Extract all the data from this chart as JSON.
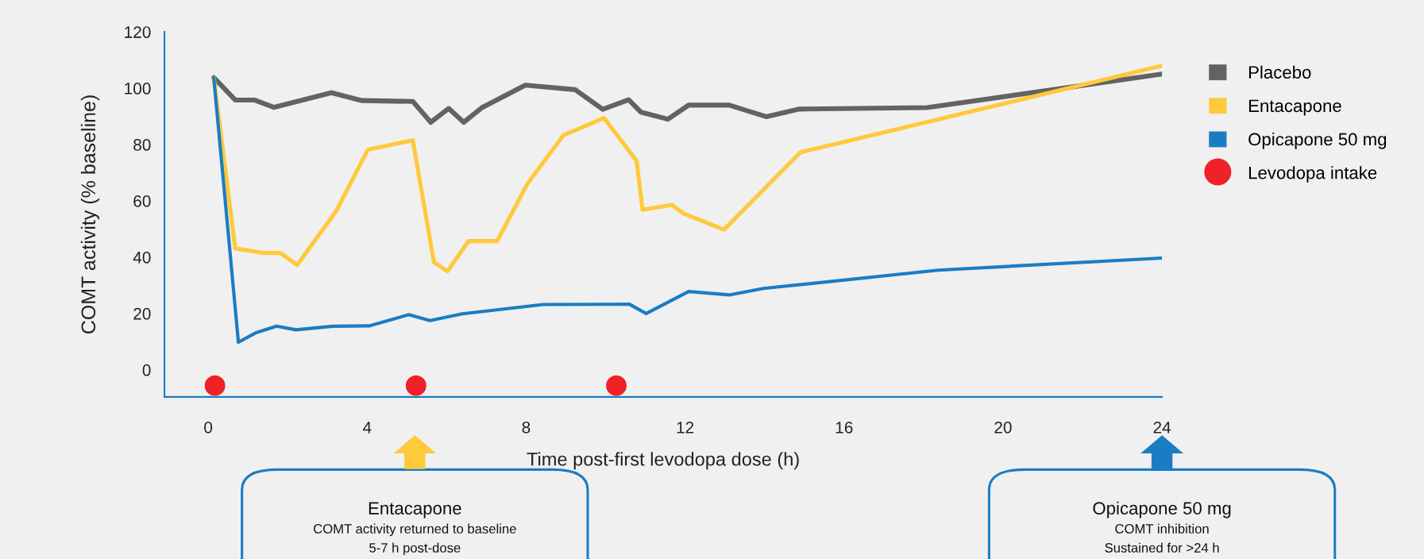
{
  "chart_data": {
    "type": "line",
    "xlabel": "Time post-first levodopa dose (h)",
    "ylabel": "COMT activity (% baseline)",
    "xlim": [
      -1.1,
      24
    ],
    "xticks": [
      0,
      4,
      8,
      12,
      16,
      20,
      24
    ],
    "ylim": [
      -9.6,
      120
    ],
    "yticks": [
      0,
      20,
      40,
      60,
      80,
      100,
      120
    ],
    "grid": false,
    "legend": "right",
    "line_style": "solid",
    "marker": "none",
    "series": [
      {
        "name": "Placebo",
        "color": "#636363",
        "x": [
          0.14,
          0.68,
          1.16,
          1.65,
          3.1,
          3.87,
          5.15,
          5.6,
          6.05,
          6.43,
          6.9,
          7.98,
          9.23,
          9.93,
          10.58,
          10.89,
          11.57,
          12.09,
          13.11,
          14.04,
          14.88,
          18.09,
          24
        ],
        "values": [
          103.8,
          95.8,
          95.8,
          93.2,
          98.4,
          95.6,
          95.3,
          87.9,
          92.8,
          87.9,
          93.2,
          101.1,
          99.5,
          92.5,
          95.9,
          91.5,
          89.0,
          94.0,
          94.0,
          89.9,
          92.6,
          93.1,
          105
        ]
      },
      {
        "name": "Entacapone",
        "color": "#ffc93c",
        "x": [
          0.14,
          0.68,
          1.39,
          1.82,
          2.24,
          3.23,
          4.02,
          5.15,
          5.68,
          6.02,
          6.55,
          7.27,
          8.03,
          8.94,
          9.96,
          10.78,
          10.93,
          11.67,
          11.96,
          12.98,
          14.9,
          24
        ],
        "values": [
          103.8,
          43.1,
          41.5,
          41.5,
          37.2,
          56.6,
          78.2,
          81.5,
          38.2,
          35.0,
          45.7,
          45.7,
          66.0,
          83.3,
          89.4,
          74.2,
          56.8,
          58.6,
          55.5,
          49.8,
          77.2,
          108
        ]
      },
      {
        "name": "Opicapone 50 mg",
        "color": "#1a7dc4",
        "x": [
          0.14,
          0.76,
          1.19,
          1.72,
          2.21,
          3.13,
          4.05,
          5.05,
          5.58,
          6.39,
          8.43,
          10.6,
          11.02,
          12.09,
          13.11,
          13.97,
          18.37,
          24
        ],
        "values": [
          103.8,
          9.8,
          13.1,
          15.5,
          14.2,
          15.5,
          15.6,
          19.6,
          17.5,
          19.9,
          23.2,
          23.3,
          20.0,
          27.8,
          26.6,
          28.9,
          35.4,
          39.7
        ]
      },
      {
        "name": "Levodopa intake",
        "type": "scatter",
        "marker": "circle",
        "color": "#ee2227",
        "x": [
          0.17,
          5.23,
          10.27
        ],
        "values": [
          -5.6,
          -5.6,
          -5.6
        ]
      }
    ],
    "annotations": [
      "Entacapone\nCOMT activity returned to baseline\n5-7 h post-dose",
      "Opicapone 50 mg\nCOMT inhibition\nSustained for >24 h"
    ]
  }
}
